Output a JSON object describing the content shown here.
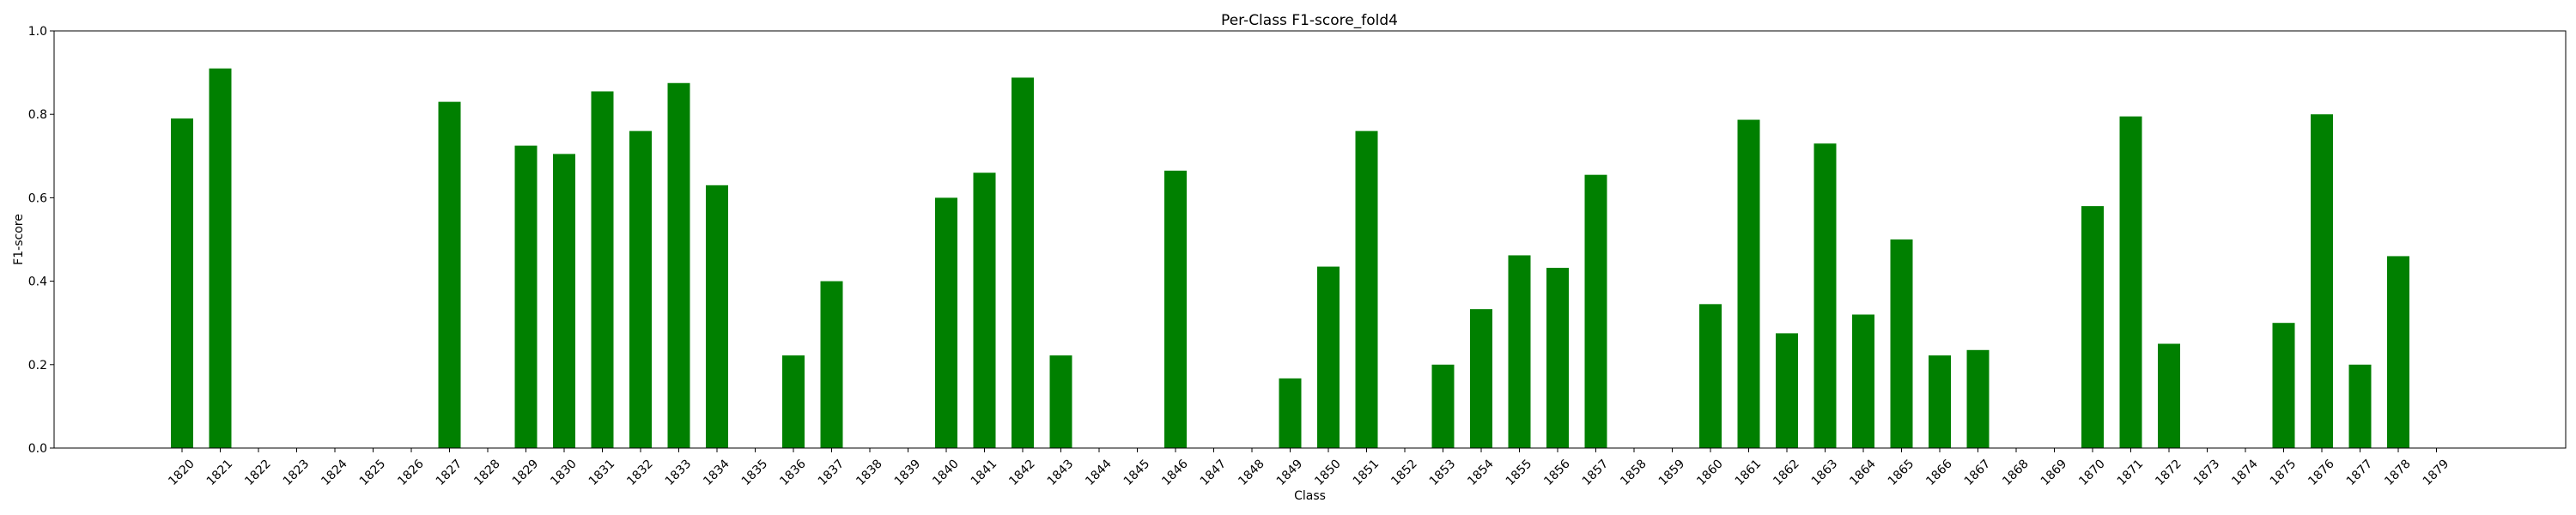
{
  "chart_data": {
    "type": "bar",
    "title": "Per-Class F1-score_fold4",
    "xlabel": "Class",
    "ylabel": "F1-score",
    "ylim": [
      0,
      1.0
    ],
    "yticks": [
      "0.0",
      "0.2",
      "0.4",
      "0.6",
      "0.8",
      "1.0"
    ],
    "grid": false,
    "bar_color": "#008000",
    "categories": [
      "1820",
      "1821",
      "1822",
      "1823",
      "1824",
      "1825",
      "1826",
      "1827",
      "1828",
      "1829",
      "1830",
      "1831",
      "1832",
      "1833",
      "1834",
      "1835",
      "1836",
      "1837",
      "1838",
      "1839",
      "1840",
      "1841",
      "1842",
      "1843",
      "1844",
      "1845",
      "1846",
      "1847",
      "1848",
      "1849",
      "1850",
      "1851",
      "1852",
      "1853",
      "1854",
      "1855",
      "1856",
      "1857",
      "1858",
      "1859",
      "1860",
      "1861",
      "1862",
      "1863",
      "1864",
      "1865",
      "1866",
      "1867",
      "1868",
      "1869",
      "1870",
      "1871",
      "1872",
      "1873",
      "1874",
      "1875",
      "1876",
      "1877",
      "1878",
      "1879"
    ],
    "values": [
      0.79,
      0.91,
      0,
      0,
      0,
      0,
      0,
      0.83,
      0,
      0.725,
      0.705,
      0.855,
      0.76,
      0.875,
      0.63,
      0,
      0.222,
      0.4,
      0,
      0,
      0.6,
      0.66,
      0.888,
      0.222,
      0,
      0,
      0.665,
      0,
      0,
      0.167,
      0.435,
      0.76,
      0,
      0.2,
      0.333,
      0.462,
      0.432,
      0.655,
      0,
      0,
      0.345,
      0.787,
      0.275,
      0.73,
      0.32,
      0.5,
      0.222,
      0.235,
      0,
      0,
      0.58,
      0.795,
      0.25,
      0,
      0,
      0.3,
      0.8,
      0.2,
      0.46,
      0
    ]
  }
}
